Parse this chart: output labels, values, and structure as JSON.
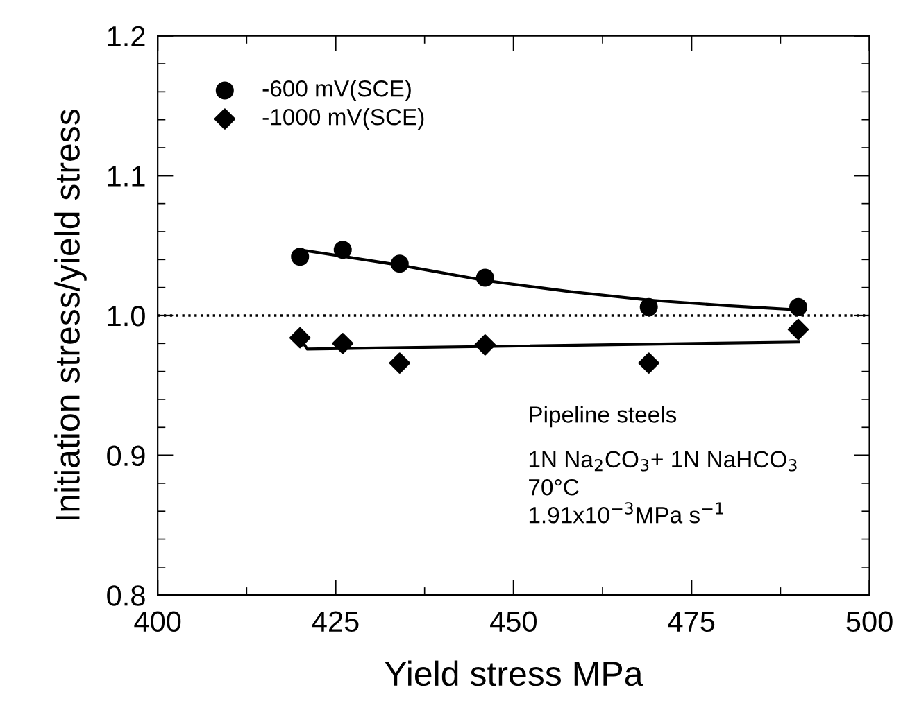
{
  "chart_data": {
    "type": "scatter",
    "xlabel": "Yield stress MPa",
    "ylabel": "Initiation stress/yield stress",
    "xlim": [
      400,
      500
    ],
    "xticks": [
      400,
      425,
      450,
      475,
      500
    ],
    "ylim": [
      0.8,
      1.2
    ],
    "yticks": [
      {
        "value": 0.8,
        "label": "0.8"
      },
      {
        "value": 0.9,
        "label": "0.9"
      },
      {
        "value": 1.0,
        "label": "1.0"
      },
      {
        "value": 1.1,
        "label": "1.1"
      },
      {
        "value": 1.2,
        "label": "1.2"
      }
    ],
    "grid": false,
    "legend": "top left",
    "series": [
      {
        "name": "-600 mV(SCE)",
        "marker": "circle",
        "color": "#000000",
        "x": [
          420,
          426,
          434,
          446,
          469,
          490
        ],
        "values": [
          1.042,
          1.047,
          1.037,
          1.027,
          1.006,
          1.006
        ]
      },
      {
        "name": "-1000 mV(SCE)",
        "marker": "diamond",
        "color": "#000000",
        "x": [
          420,
          426,
          434,
          446,
          469,
          490
        ],
        "values": [
          0.984,
          0.98,
          0.966,
          0.979,
          0.966,
          0.99
        ]
      },
      {
        "type": "line",
        "marker": "none",
        "line_style": "solid",
        "color": "#000000",
        "x": [
          420,
          434,
          446,
          458,
          469,
          480,
          490
        ],
        "values": [
          1.047,
          1.036,
          1.025,
          1.017,
          1.011,
          1.007,
          1.004
        ]
      },
      {
        "type": "line",
        "marker": "none",
        "line_style": "solid",
        "color": "#000000",
        "x": [
          420,
          421,
          490
        ],
        "values": [
          0.984,
          0.976,
          0.981
        ]
      }
    ],
    "ref_lines": [
      {
        "axis": "y",
        "value": 1.0,
        "color": "#000000",
        "line_style": "dotted"
      }
    ],
    "annotations": [
      "Pipeline steels",
      "1N Na$_{2}$CO$_{3}$+ 1N NaHCO$_{3}$",
      "70°C",
      "1.91x10$^{−3}$MPa s$^{−1}$"
    ]
  }
}
